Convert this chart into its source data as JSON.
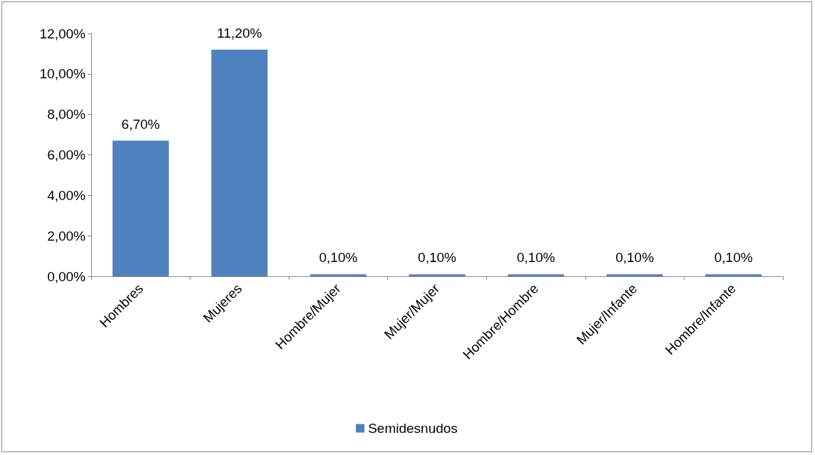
{
  "chart_data": {
    "type": "bar",
    "categories": [
      "Hombres",
      "Mujeres",
      "Hombre/Mujer",
      "Mujer/Mujer",
      "Hombre/Hombre",
      "Mujer/Infante",
      "Hombre/Infante"
    ],
    "series": [
      {
        "name": "Semidesnudos",
        "color": "#4f81bd",
        "values": [
          6.7,
          11.2,
          0.1,
          0.1,
          0.1,
          0.1,
          0.1
        ],
        "value_labels": [
          "6,70%",
          "11,20%",
          "0,10%",
          "0,10%",
          "0,10%",
          "0,10%",
          "0,10%"
        ]
      }
    ],
    "ylim": [
      0,
      12
    ],
    "yticks": [
      {
        "value": 0,
        "label": "0,00%"
      },
      {
        "value": 2,
        "label": "2,00%"
      },
      {
        "value": 4,
        "label": "4,00%"
      },
      {
        "value": 6,
        "label": "6,00%"
      },
      {
        "value": 8,
        "label": "8,00%"
      },
      {
        "value": 10,
        "label": "10,00%"
      },
      {
        "value": 12,
        "label": "12,00%"
      }
    ],
    "grid": false,
    "legend": "bottom"
  }
}
